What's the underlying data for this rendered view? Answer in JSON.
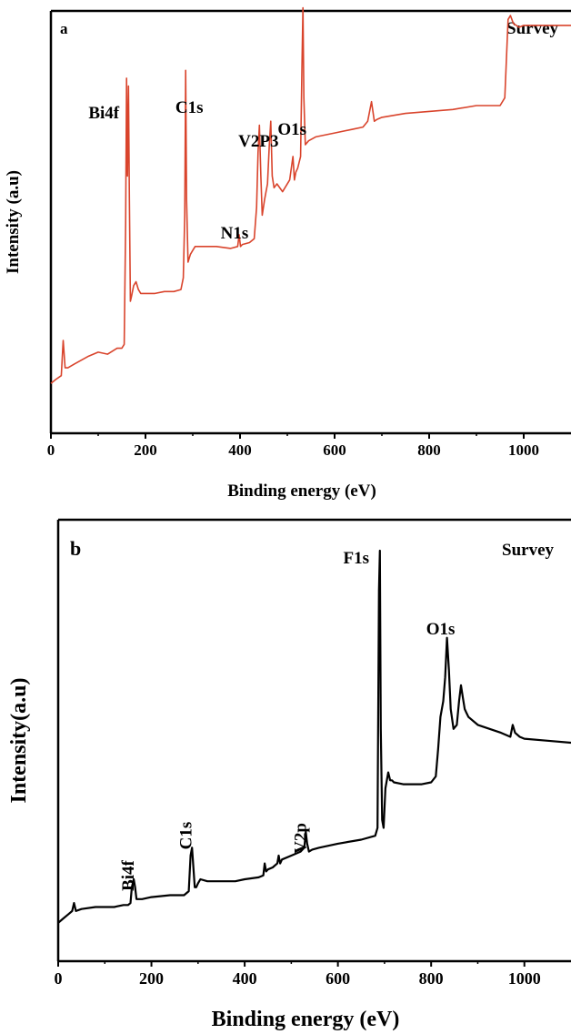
{
  "chart_data": [
    {
      "panel_label": "a",
      "type": "line",
      "xlabel": "Binding energy (eV)",
      "ylabel": "Intensity (a.u)",
      "xlim": [
        0,
        1100
      ],
      "ylim": [
        0,
        100
      ],
      "xticks": [
        0,
        200,
        400,
        600,
        800,
        1000
      ],
      "tick_labels": [
        "0",
        "200",
        "400",
        "600",
        "800",
        "1000"
      ],
      "color": "#d9442c",
      "corner_label": "Survey",
      "series": [
        {
          "x": [
            0,
            10,
            22,
            26,
            30,
            36,
            50,
            80,
            100,
            120,
            140,
            150,
            155,
            158,
            160,
            162,
            164,
            166,
            168,
            170,
            175,
            180,
            185,
            190,
            200,
            220,
            240,
            260,
            275,
            280,
            283,
            285,
            287,
            290,
            295,
            300,
            305,
            320,
            350,
            380,
            395,
            398,
            401,
            405,
            420,
            430,
            435,
            438,
            441,
            444,
            447,
            452,
            458,
            462,
            465,
            468,
            472,
            478,
            490,
            505,
            512,
            515,
            518,
            522,
            528,
            531,
            533,
            535,
            538,
            545,
            560,
            600,
            640,
            660,
            670,
            678,
            684,
            690,
            700,
            750,
            800,
            850,
            900,
            950,
            960,
            967,
            972,
            978,
            990,
            1000,
            1050,
            1100
          ],
          "y": [
            9,
            10,
            11,
            20,
            13,
            13,
            14,
            16,
            17,
            16.5,
            18,
            18,
            19,
            50,
            87,
            62,
            85,
            56,
            30,
            31,
            34,
            35,
            33,
            32,
            32,
            32,
            32.5,
            32.5,
            33,
            36,
            52,
            89,
            56,
            40,
            42,
            43,
            44,
            44,
            44,
            43.5,
            44,
            47,
            44,
            44.5,
            45,
            46,
            54,
            68,
            75,
            62,
            52,
            56,
            60,
            70,
            76,
            62,
            59,
            60,
            58,
            61,
            67,
            61,
            63,
            64,
            67,
            90,
            105,
            82,
            70,
            71,
            72,
            73,
            74,
            74.5,
            76,
            81,
            76,
            76.5,
            77,
            78,
            78.5,
            79,
            80,
            80,
            82,
            102,
            103,
            101,
            100,
            100.5,
            100.5,
            100.5
          ]
        }
      ],
      "annotations": [
        {
          "text": "Bi4f",
          "x": 162
        },
        {
          "text": "C1s",
          "x": 285
        },
        {
          "text": "N1s",
          "x": 398
        },
        {
          "text": "V2P3",
          "x": 441
        },
        {
          "text": "O1s",
          "x": 533
        }
      ]
    },
    {
      "panel_label": "b",
      "type": "line",
      "xlabel": "Binding energy (eV)",
      "ylabel": "Intensity(a.u)",
      "xlim": [
        0,
        1100
      ],
      "ylim": [
        0,
        100
      ],
      "xticks": [
        0,
        200,
        400,
        600,
        800,
        1000
      ],
      "tick_labels": [
        "0",
        "200",
        "400",
        "600",
        "800",
        "1000"
      ],
      "color": "#000000",
      "corner_label": "Survey",
      "series": [
        {
          "x": [
            0,
            10,
            20,
            30,
            34,
            38,
            50,
            80,
            100,
            120,
            140,
            150,
            155,
            158,
            162,
            165,
            168,
            172,
            180,
            200,
            240,
            270,
            280,
            284,
            287,
            290,
            293,
            296,
            300,
            305,
            320,
            350,
            380,
            400,
            430,
            440,
            443,
            446,
            450,
            460,
            470,
            473,
            476,
            480,
            500,
            520,
            528,
            531,
            534,
            538,
            545,
            560,
            600,
            650,
            680,
            685,
            688,
            690,
            692,
            695,
            698,
            702,
            708,
            712,
            716,
            720,
            740,
            780,
            800,
            810,
            815,
            820,
            826,
            830,
            834,
            838,
            842,
            848,
            855,
            860,
            864,
            868,
            872,
            876,
            880,
            900,
            950,
            970,
            975,
            980,
            990,
            1000,
            1050,
            1100
          ],
          "y": [
            6,
            7,
            8,
            9,
            11,
            9,
            9.5,
            10,
            10,
            10,
            10.5,
            10.5,
            11,
            15,
            17,
            15,
            12,
            12,
            12,
            12.5,
            13,
            13,
            14,
            23,
            25,
            20,
            15,
            15,
            16,
            17,
            16.5,
            16.5,
            16.5,
            17,
            17.5,
            18,
            21,
            19,
            19.5,
            20,
            21,
            23,
            21,
            22,
            23,
            24,
            25,
            29,
            26,
            24,
            24.5,
            25,
            26,
            27,
            28,
            30,
            90,
            100,
            55,
            32,
            30,
            40,
            44,
            42,
            42,
            41.5,
            41,
            41,
            41.5,
            43,
            50,
            58,
            62,
            68,
            78,
            70,
            60,
            55,
            56,
            62,
            66,
            63,
            60,
            59,
            58,
            56,
            54,
            53,
            56,
            54,
            53,
            52.5,
            52,
            51.5
          ]
        }
      ],
      "annotations": [
        {
          "text": "Bi4f",
          "x": 162
        },
        {
          "text": "C1s",
          "x": 286
        },
        {
          "text": "V2p",
          "x": 531
        },
        {
          "text": "F1s",
          "x": 690
        },
        {
          "text": "O1s",
          "x": 834
        }
      ]
    }
  ]
}
